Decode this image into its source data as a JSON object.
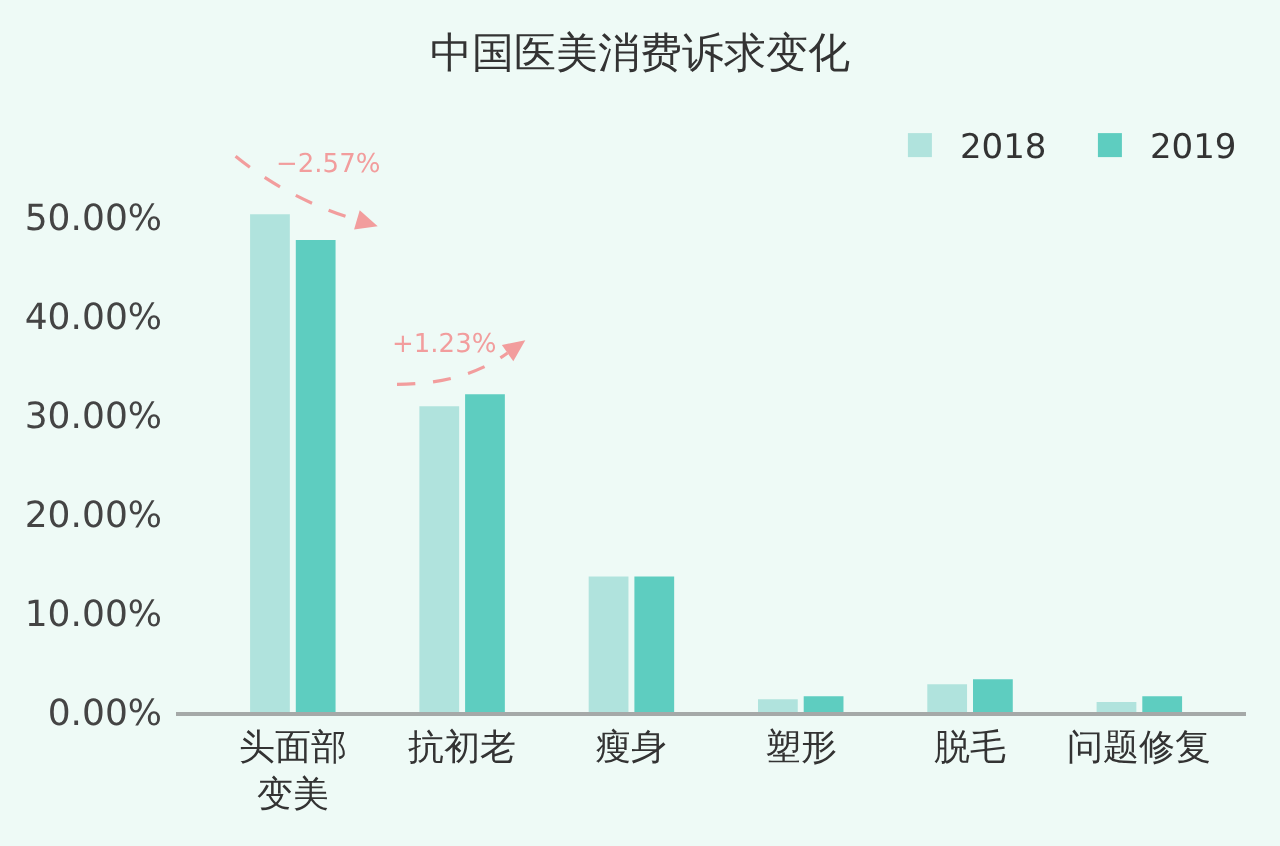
{
  "chart_data": {
    "type": "bar",
    "title": "中国医美消费诉求变化",
    "categories": [
      "头面部变美",
      "抗初老",
      "瘦身",
      "塑形",
      "脱毛",
      "问题修复"
    ],
    "series": [
      {
        "name": "2018",
        "color": "#b0e3dd",
        "values": [
          50.3,
          30.9,
          13.7,
          1.3,
          2.8,
          1.0
        ]
      },
      {
        "name": "2019",
        "color": "#5ecdc0",
        "values": [
          47.7,
          32.1,
          13.7,
          1.6,
          3.3,
          1.6
        ]
      }
    ],
    "ylim": [
      0,
      58
    ],
    "yticks": [
      {
        "value": 0,
        "label": "0.00%"
      },
      {
        "value": 10,
        "label": "10.00%"
      },
      {
        "value": 20,
        "label": "20.00%"
      },
      {
        "value": 30,
        "label": "30.00%"
      },
      {
        "value": 40,
        "label": "40.00%"
      },
      {
        "value": 50,
        "label": "50.00%"
      }
    ],
    "legend": "top right",
    "annotations": [
      "−2.57%",
      "+1.23%"
    ]
  }
}
